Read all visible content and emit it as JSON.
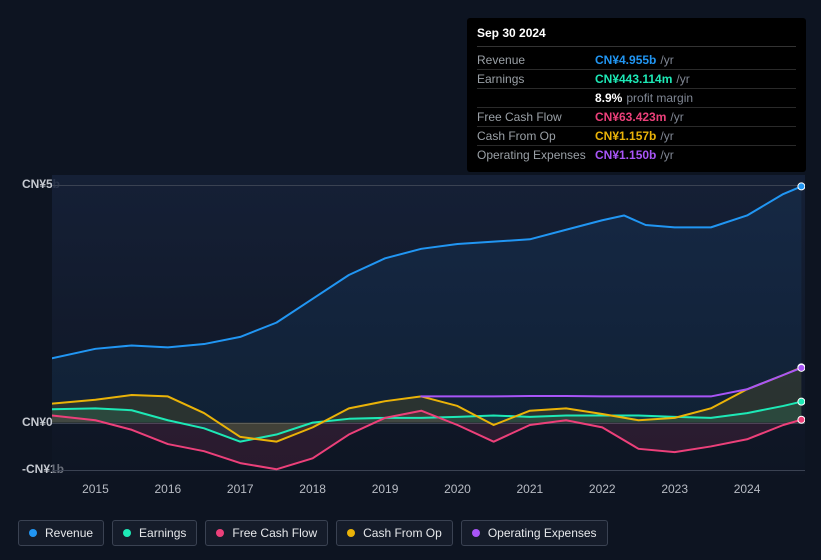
{
  "tooltip": {
    "date": "Sep 30 2024",
    "rows": [
      {
        "label": "Revenue",
        "value": "CN¥4.955b",
        "suffix": "/yr",
        "color": "#2196f3"
      },
      {
        "label": "Earnings",
        "value": "CN¥443.114m",
        "suffix": "/yr",
        "color": "#1de9b6"
      },
      {
        "label": "",
        "value": "8.9%",
        "suffix": "profit margin",
        "color": "#ffffff"
      },
      {
        "label": "Free Cash Flow",
        "value": "CN¥63.423m",
        "suffix": "/yr",
        "color": "#ec407a"
      },
      {
        "label": "Cash From Op",
        "value": "CN¥1.157b",
        "suffix": "/yr",
        "color": "#eab308"
      },
      {
        "label": "Operating Expenses",
        "value": "CN¥1.150b",
        "suffix": "/yr",
        "color": "#a855f7"
      }
    ]
  },
  "chart": {
    "type": "line-area",
    "background_color": "#0d1421",
    "plot_bg_top": "rgba(22,33,56,0.9)",
    "plot_bg_bottom": "rgba(15,22,37,0.5)",
    "grid_color": "#3a4252",
    "y_axis": {
      "ticks": [
        {
          "label": "CN¥5b",
          "value": 5
        },
        {
          "label": "CN¥0",
          "value": 0
        },
        {
          "label": "-CN¥1b",
          "value": -1
        }
      ],
      "min": -1.1,
      "max": 5.2
    },
    "x_axis": {
      "labels": [
        "2015",
        "2016",
        "2017",
        "2018",
        "2019",
        "2020",
        "2021",
        "2022",
        "2023",
        "2024"
      ],
      "min": 2014.4,
      "max": 2024.8
    },
    "series": [
      {
        "name": "Revenue",
        "color": "#2196f3",
        "fill_opacity": 0.08,
        "data": [
          [
            2014.4,
            1.35
          ],
          [
            2015.0,
            1.55
          ],
          [
            2015.5,
            1.62
          ],
          [
            2016.0,
            1.58
          ],
          [
            2016.5,
            1.65
          ],
          [
            2017.0,
            1.8
          ],
          [
            2017.5,
            2.1
          ],
          [
            2018.0,
            2.6
          ],
          [
            2018.5,
            3.1
          ],
          [
            2019.0,
            3.45
          ],
          [
            2019.5,
            3.65
          ],
          [
            2020.0,
            3.75
          ],
          [
            2020.5,
            3.8
          ],
          [
            2021.0,
            3.85
          ],
          [
            2021.5,
            4.05
          ],
          [
            2022.0,
            4.25
          ],
          [
            2022.3,
            4.35
          ],
          [
            2022.6,
            4.15
          ],
          [
            2023.0,
            4.1
          ],
          [
            2023.5,
            4.1
          ],
          [
            2024.0,
            4.35
          ],
          [
            2024.5,
            4.8
          ],
          [
            2024.75,
            4.96
          ]
        ]
      },
      {
        "name": "Earnings",
        "color": "#1de9b6",
        "fill_opacity": 0.12,
        "data": [
          [
            2014.4,
            0.28
          ],
          [
            2015.0,
            0.3
          ],
          [
            2015.5,
            0.26
          ],
          [
            2016.0,
            0.05
          ],
          [
            2016.5,
            -0.12
          ],
          [
            2017.0,
            -0.4
          ],
          [
            2017.5,
            -0.25
          ],
          [
            2018.0,
            0.0
          ],
          [
            2018.5,
            0.08
          ],
          [
            2019.0,
            0.1
          ],
          [
            2019.5,
            0.1
          ],
          [
            2020.0,
            0.12
          ],
          [
            2020.5,
            0.15
          ],
          [
            2021.0,
            0.12
          ],
          [
            2021.5,
            0.15
          ],
          [
            2022.0,
            0.15
          ],
          [
            2022.5,
            0.15
          ],
          [
            2023.0,
            0.12
          ],
          [
            2023.5,
            0.1
          ],
          [
            2024.0,
            0.2
          ],
          [
            2024.5,
            0.35
          ],
          [
            2024.75,
            0.44
          ]
        ]
      },
      {
        "name": "Free Cash Flow",
        "color": "#ec407a",
        "fill_opacity": 0.12,
        "data": [
          [
            2014.4,
            0.15
          ],
          [
            2015.0,
            0.05
          ],
          [
            2015.5,
            -0.15
          ],
          [
            2016.0,
            -0.45
          ],
          [
            2016.5,
            -0.6
          ],
          [
            2017.0,
            -0.85
          ],
          [
            2017.5,
            -0.98
          ],
          [
            2018.0,
            -0.75
          ],
          [
            2018.5,
            -0.25
          ],
          [
            2019.0,
            0.1
          ],
          [
            2019.5,
            0.25
          ],
          [
            2020.0,
            -0.05
          ],
          [
            2020.5,
            -0.4
          ],
          [
            2021.0,
            -0.05
          ],
          [
            2021.5,
            0.05
          ],
          [
            2022.0,
            -0.1
          ],
          [
            2022.5,
            -0.55
          ],
          [
            2023.0,
            -0.62
          ],
          [
            2023.5,
            -0.5
          ],
          [
            2024.0,
            -0.35
          ],
          [
            2024.5,
            -0.05
          ],
          [
            2024.75,
            0.06
          ]
        ]
      },
      {
        "name": "Cash From Op",
        "color": "#eab308",
        "fill_opacity": 0.12,
        "data": [
          [
            2014.4,
            0.4
          ],
          [
            2015.0,
            0.48
          ],
          [
            2015.5,
            0.58
          ],
          [
            2016.0,
            0.55
          ],
          [
            2016.5,
            0.2
          ],
          [
            2017.0,
            -0.3
          ],
          [
            2017.5,
            -0.4
          ],
          [
            2018.0,
            -0.1
          ],
          [
            2018.5,
            0.3
          ],
          [
            2019.0,
            0.45
          ],
          [
            2019.5,
            0.55
          ],
          [
            2020.0,
            0.35
          ],
          [
            2020.5,
            -0.05
          ],
          [
            2021.0,
            0.25
          ],
          [
            2021.5,
            0.3
          ],
          [
            2022.0,
            0.18
          ],
          [
            2022.5,
            0.05
          ],
          [
            2023.0,
            0.1
          ],
          [
            2023.5,
            0.3
          ],
          [
            2024.0,
            0.7
          ],
          [
            2024.5,
            1.0
          ],
          [
            2024.75,
            1.16
          ]
        ]
      },
      {
        "name": "Operating Expenses",
        "color": "#a855f7",
        "fill_opacity": 0.0,
        "data": [
          [
            2019.5,
            0.55
          ],
          [
            2020.0,
            0.55
          ],
          [
            2020.5,
            0.55
          ],
          [
            2021.0,
            0.56
          ],
          [
            2021.5,
            0.56
          ],
          [
            2022.0,
            0.55
          ],
          [
            2022.5,
            0.55
          ],
          [
            2023.0,
            0.55
          ],
          [
            2023.5,
            0.55
          ],
          [
            2024.0,
            0.7
          ],
          [
            2024.5,
            1.0
          ],
          [
            2024.75,
            1.15
          ]
        ]
      }
    ]
  },
  "legend": [
    {
      "label": "Revenue",
      "color": "#2196f3"
    },
    {
      "label": "Earnings",
      "color": "#1de9b6"
    },
    {
      "label": "Free Cash Flow",
      "color": "#ec407a"
    },
    {
      "label": "Cash From Op",
      "color": "#eab308"
    },
    {
      "label": "Operating Expenses",
      "color": "#a855f7"
    }
  ]
}
